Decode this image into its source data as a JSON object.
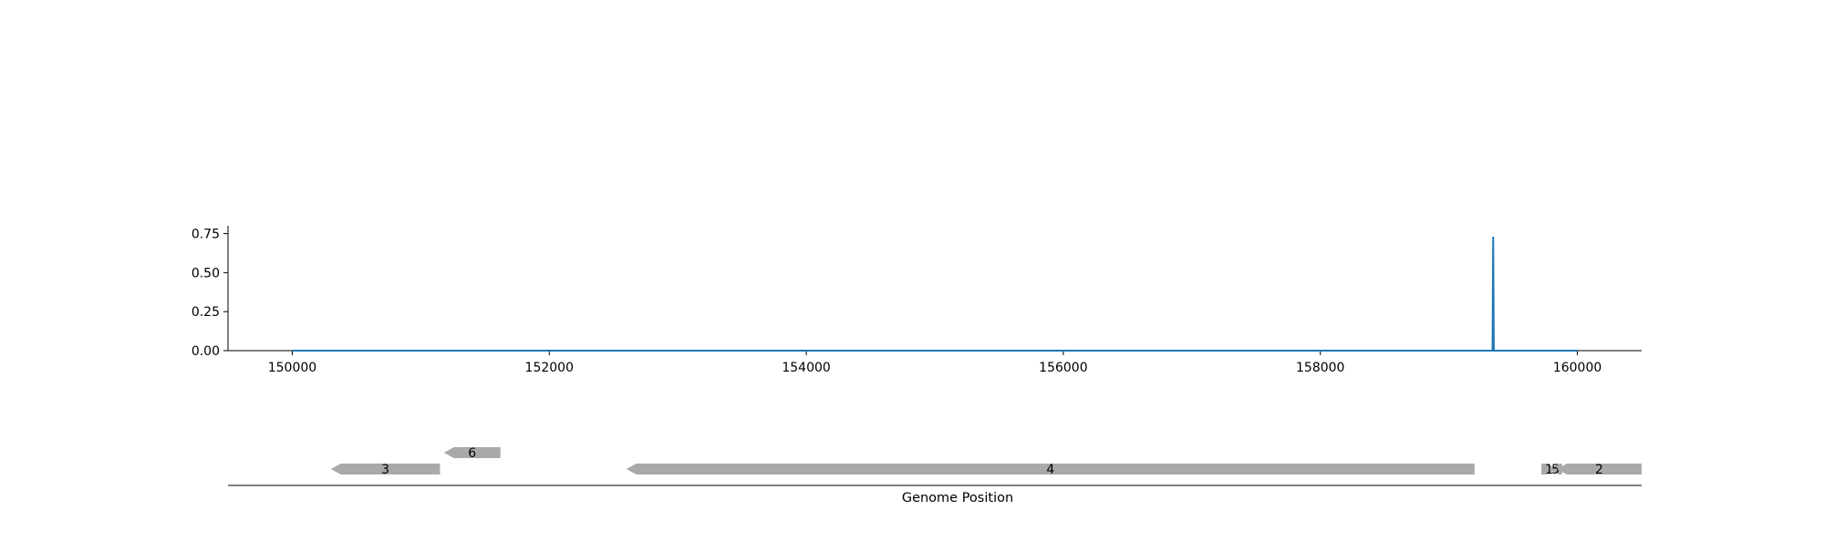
{
  "chart_data": [
    {
      "type": "line",
      "title": "",
      "xlabel": "",
      "ylabel": "",
      "xlim": [
        149500,
        160500
      ],
      "ylim": [
        0,
        0.8
      ],
      "x_ticks": [
        150000,
        152000,
        154000,
        156000,
        158000,
        160000
      ],
      "x_tick_labels": [
        "150000",
        "152000",
        "154000",
        "156000",
        "158000",
        "160000"
      ],
      "y_ticks": [
        0.0,
        0.25,
        0.5,
        0.75
      ],
      "y_tick_labels": [
        "0.00",
        "0.25",
        "0.50",
        "0.75"
      ],
      "grid": false,
      "color": "#1f77b4",
      "series": [
        {
          "x": [
            150000,
            159340,
            159345,
            159350,
            160000
          ],
          "y": [
            0.0,
            0.0,
            0.73,
            0.0,
            0.0
          ]
        }
      ]
    },
    {
      "type": "gene-track",
      "xlabel": "Genome Position",
      "xlim": [
        149500,
        160500
      ],
      "color": "#a9a9a9",
      "features": [
        {
          "label": "3",
          "start": 150300,
          "end": 151150,
          "strand": -1,
          "level": 0
        },
        {
          "label": "6",
          "start": 151180,
          "end": 151620,
          "strand": -1,
          "level": 1
        },
        {
          "label": "4",
          "start": 152600,
          "end": 159200,
          "strand": -1,
          "level": 0
        },
        {
          "label": "1",
          "start": 159720,
          "end": 159840,
          "strand": 1,
          "level": 0
        },
        {
          "label": "5",
          "start": 159780,
          "end": 159880,
          "strand": -1,
          "level": 0
        },
        {
          "label": "2",
          "start": 159840,
          "end": 160500,
          "strand": -1,
          "level": 0
        }
      ]
    }
  ]
}
